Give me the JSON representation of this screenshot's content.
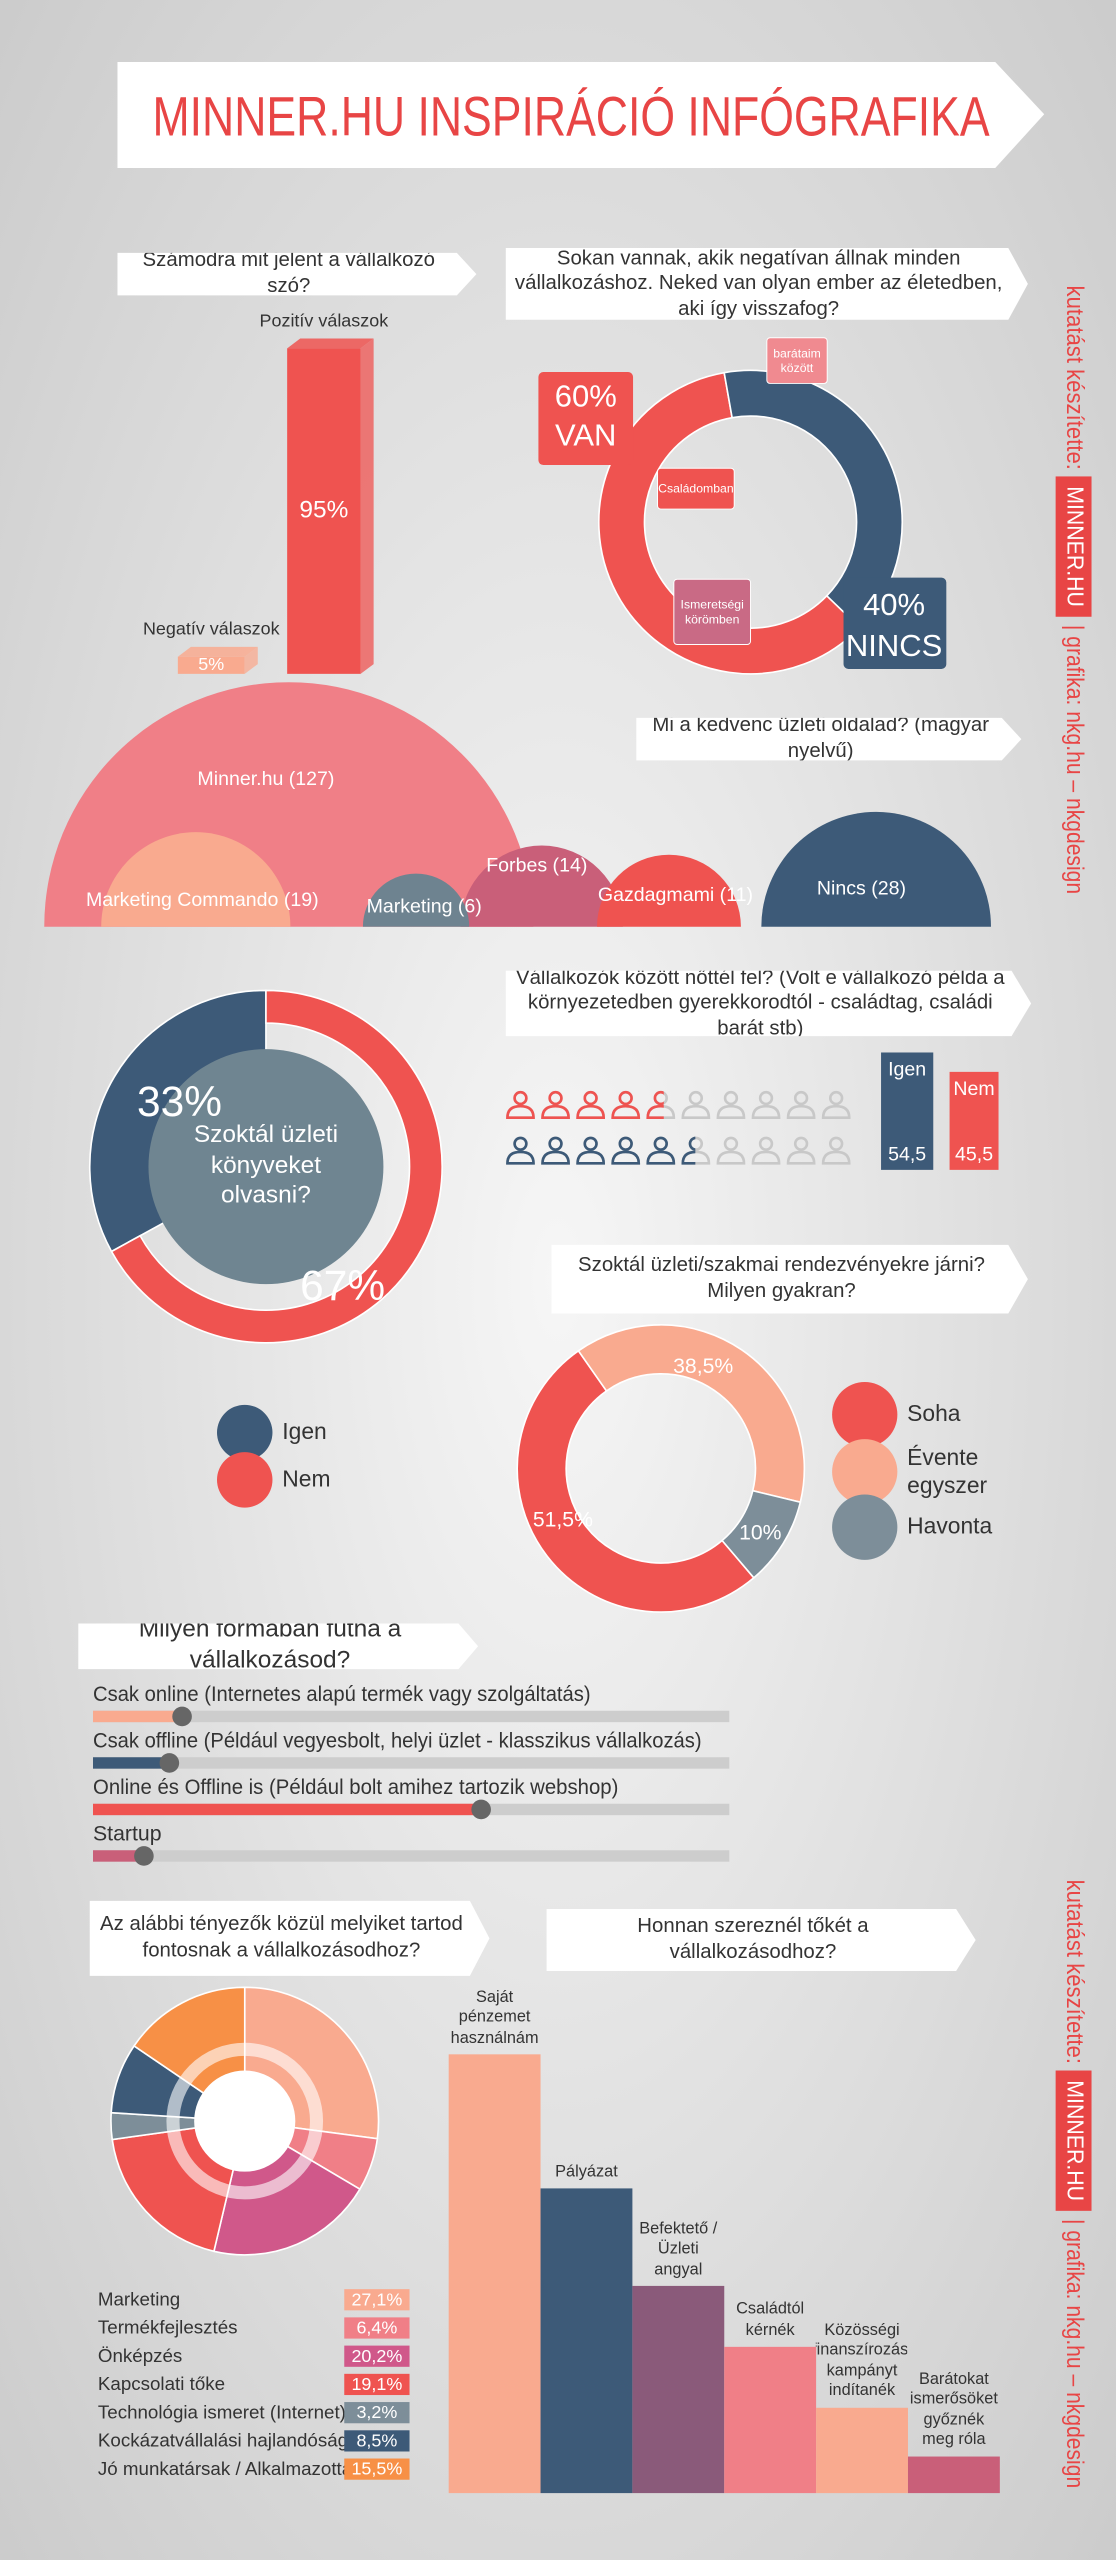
{
  "title": "MINNER.HU INSPIRÁCIÓ INFÓGRAFIKA",
  "credits": {
    "prefix": "kutatást készítette:",
    "brand": "MINNER.HU",
    "suffix": "| grafika: nkg.hu – nkgdesign"
  },
  "chart_data": [
    {
      "type": "bar",
      "title": "Számodra mit jelent a vállalkozó szó?",
      "categories": [
        "Pozitív válaszok",
        "Negatív válaszok"
      ],
      "values": [
        95,
        5
      ],
      "value_labels": [
        "95%",
        "5%"
      ],
      "colors": [
        "#ef5350",
        "#f9aa8f"
      ]
    },
    {
      "type": "donut",
      "title": "Sokan vannak, akik negatívan állnak minden vállalkozáshoz. Neked van olyan ember az életedben, aki így visszafog?",
      "categories": [
        "VAN",
        "NINCS"
      ],
      "values": [
        60,
        40
      ],
      "value_labels": [
        "60%",
        "40%"
      ],
      "colors": [
        "#ef5350",
        "#3d5a78"
      ],
      "annotations": [
        "barátaim között",
        "Családomban",
        "Ismeretségi körömben"
      ]
    },
    {
      "type": "bubble",
      "title": "Mi a kedvenc üzleti oldalad? (magyar nyelvű)",
      "values": [
        127,
        19,
        6,
        14,
        11,
        28
      ],
      "value_labels": [
        "Minner.hu (127)",
        "Marketing Commando (19)",
        "Marketing (6)",
        "Forbes (14)",
        "Gazdagmami (11)",
        "Nincs (28)"
      ],
      "colors": [
        "#f07f87",
        "#f9aa8f",
        "#6e8390",
        "#c95f79",
        "#ef5350",
        "#3d5a78"
      ]
    },
    {
      "type": "pictogram",
      "title": "Vállalkozók között nőttél fel? (Volt e vállalkozó példa a környezetedben gyerekkorodtól - családtag, családi barát stb)",
      "series": [
        {
          "name": "Igen",
          "color": "#3d5a78",
          "values": [
            54.5
          ],
          "value_labels": [
            "54,5"
          ]
        },
        {
          "name": "Nem",
          "color": "#ef5350",
          "values": [
            45.5
          ],
          "value_labels": [
            "45,5"
          ]
        }
      ]
    },
    {
      "type": "donut",
      "title": "Szoktál üzleti könyveket olvasni?",
      "categories": [
        "Igen",
        "Nem"
      ],
      "values": [
        33,
        67
      ],
      "value_labels": [
        "33%",
        "67%"
      ],
      "colors": [
        "#3d5a78",
        "#ef5350"
      ]
    },
    {
      "type": "donut",
      "title": "Szoktál üzleti/szakmai rendezvényekre járni? Milyen gyakran?",
      "categories": [
        "Soha",
        "Évente egyszer",
        "Havonta"
      ],
      "values": [
        51.5,
        38.5,
        10
      ],
      "value_labels": [
        "51,5%",
        "38,5%",
        "10%"
      ],
      "colors": [
        "#ef5350",
        "#f9aa8f",
        "#7d8e99"
      ]
    },
    {
      "type": "slider",
      "title": "Milyen formában futna a vállalkozásod?",
      "categories": [
        "Csak online (Internetes alapú termék vagy szolgáltatás)",
        "Csak offline (Például vegyesbolt, helyi üzlet - klasszikus vállalkozás)",
        "Online és Offline is (Például bolt amihez tartozik webshop)",
        "Startup"
      ],
      "values": [
        14,
        12,
        61,
        8
      ],
      "xlim": [
        0,
        100
      ],
      "colors": [
        "#f9aa8f",
        "#3d5a78",
        "#ef5350",
        "#c95f79"
      ]
    },
    {
      "type": "donut",
      "title": "Az alábbi tényezők közül melyiket tartod fontosnak a vállalkozásodhoz?",
      "categories": [
        "Marketing",
        "Termékfejlesztés",
        "Önképzés",
        "Kapcsolati tőke",
        "Technológia ismeret (Internet)",
        "Kockázatvállalási hajlandóság",
        "Jó munkatársak / Alkalmazottak"
      ],
      "values": [
        27.1,
        6.4,
        20.2,
        19.1,
        3.2,
        8.5,
        15.5
      ],
      "value_labels": [
        "27,1%",
        "6,4%",
        "20,2%",
        "19,1%",
        "3,2%",
        "8,5%",
        "15,5%"
      ],
      "colors": [
        "#f9aa8f",
        "#f07f87",
        "#d0588a",
        "#ef5350",
        "#7d8e99",
        "#3d5a78",
        "#f79046"
      ]
    },
    {
      "type": "bar",
      "title": "Honnan szereznél tőkét a vállalkozásodhoz?",
      "categories": [
        "Saját pénzemet használnám",
        "Pályázat",
        "Befektető / Üzleti angyal",
        "Családtól kérnék",
        "Közösségi finanszírozási kampányt indítanék",
        "Barátokat ismerősöket győznék meg róla"
      ],
      "values": [
        36,
        25,
        17,
        12,
        7,
        3
      ],
      "colors": [
        "#f9aa8f",
        "#3d5a78",
        "#8a5a7a",
        "#f07f87",
        "#f9aa8f",
        "#c95f79"
      ]
    }
  ]
}
